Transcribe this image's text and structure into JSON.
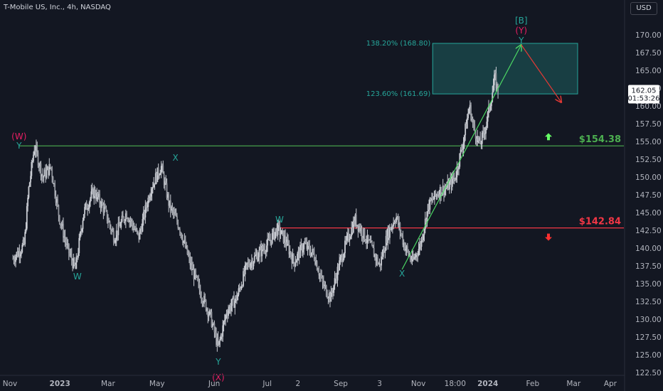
{
  "header": {
    "title": "T-Mobile US, Inc., 4h, NASDAQ",
    "currency": "USD"
  },
  "price_label": {
    "price": "162.05",
    "countdown": "01:53:26"
  },
  "colors": {
    "background": "#131722",
    "candle": "#c9ccd3",
    "green_line": "#4caf50",
    "red_line": "#f23645",
    "teal": "#26a69a",
    "magenta": "#e91e63",
    "arrow_green": "#66ff66",
    "arrow_red": "#ff3030"
  },
  "chart_data": {
    "type": "candlestick",
    "title": "T-Mobile US, Inc., 4h, NASDAQ",
    "ylim": [
      121.5,
      173.5
    ],
    "y_ticks": [
      "170.00",
      "167.50",
      "165.00",
      "162.50",
      "160.00",
      "157.50",
      "155.00",
      "152.50",
      "150.00",
      "147.50",
      "145.00",
      "142.50",
      "140.00",
      "137.50",
      "135.00",
      "132.50",
      "130.00",
      "127.50",
      "125.00",
      "122.50"
    ],
    "x_ticks": [
      "Nov",
      "2023",
      "Mar",
      "May",
      "Jun",
      "Jul",
      "2",
      "Sep",
      "3",
      "Nov",
      "18:00",
      "2024",
      "Feb",
      "Mar",
      "Apr"
    ],
    "close_path": [
      {
        "x": 0.02,
        "y": 138.5
      },
      {
        "x": 0.3,
        "y": 140.5
      },
      {
        "x": 0.4,
        "y": 148.0
      },
      {
        "x": 0.55,
        "y": 154.4
      },
      {
        "x": 0.75,
        "y": 150.0
      },
      {
        "x": 0.95,
        "y": 151.5
      },
      {
        "x": 1.15,
        "y": 144.5
      },
      {
        "x": 1.35,
        "y": 140.0
      },
      {
        "x": 1.55,
        "y": 137.0
      },
      {
        "x": 1.75,
        "y": 145.0
      },
      {
        "x": 2.0,
        "y": 148.0
      },
      {
        "x": 2.25,
        "y": 145.5
      },
      {
        "x": 2.5,
        "y": 141.5
      },
      {
        "x": 2.8,
        "y": 145.0
      },
      {
        "x": 3.1,
        "y": 141.5
      },
      {
        "x": 3.4,
        "y": 148.5
      },
      {
        "x": 3.65,
        "y": 151.5
      },
      {
        "x": 3.85,
        "y": 146.0
      },
      {
        "x": 4.1,
        "y": 143.0
      },
      {
        "x": 4.35,
        "y": 138.0
      },
      {
        "x": 4.6,
        "y": 134.0
      },
      {
        "x": 4.85,
        "y": 130.5
      },
      {
        "x": 5.05,
        "y": 126.0
      },
      {
        "x": 5.25,
        "y": 131.0
      },
      {
        "x": 5.5,
        "y": 133.0
      },
      {
        "x": 5.75,
        "y": 137.5
      },
      {
        "x": 6.0,
        "y": 139.0
      },
      {
        "x": 6.25,
        "y": 140.5
      },
      {
        "x": 6.5,
        "y": 142.8
      },
      {
        "x": 6.7,
        "y": 141.0
      },
      {
        "x": 6.9,
        "y": 138.0
      },
      {
        "x": 7.15,
        "y": 140.5
      },
      {
        "x": 7.4,
        "y": 139.0
      },
      {
        "x": 7.6,
        "y": 135.0
      },
      {
        "x": 7.8,
        "y": 133.0
      },
      {
        "x": 8.0,
        "y": 137.5
      },
      {
        "x": 8.2,
        "y": 141.0
      },
      {
        "x": 8.4,
        "y": 144.0
      },
      {
        "x": 8.6,
        "y": 142.0
      },
      {
        "x": 8.8,
        "y": 140.0
      },
      {
        "x": 9.0,
        "y": 137.5
      },
      {
        "x": 9.2,
        "y": 142.0
      },
      {
        "x": 9.4,
        "y": 144.5
      },
      {
        "x": 9.6,
        "y": 140.5
      },
      {
        "x": 9.8,
        "y": 138.0
      },
      {
        "x": 10.0,
        "y": 140.5
      },
      {
        "x": 10.2,
        "y": 146.0
      },
      {
        "x": 10.45,
        "y": 148.0
      },
      {
        "x": 10.65,
        "y": 148.5
      },
      {
        "x": 10.85,
        "y": 150.0
      },
      {
        "x": 11.05,
        "y": 155.0
      },
      {
        "x": 11.2,
        "y": 160.0
      },
      {
        "x": 11.3,
        "y": 157.0
      },
      {
        "x": 11.45,
        "y": 154.5
      },
      {
        "x": 11.55,
        "y": 156.0
      },
      {
        "x": 11.7,
        "y": 160.0
      },
      {
        "x": 11.82,
        "y": 164.0
      },
      {
        "x": 11.9,
        "y": 162.05
      }
    ],
    "annotations": {
      "wave_labels": [
        {
          "text": "(W)",
          "x": 0.17,
          "y": 155.7,
          "color": "#e91e63"
        },
        {
          "text": "Y",
          "x": 0.17,
          "y": 154.4,
          "color": "#26a69a"
        },
        {
          "text": "W",
          "x": 1.6,
          "y": 136.0,
          "color": "#26a69a"
        },
        {
          "text": "X",
          "x": 4.0,
          "y": 152.7,
          "color": "#26a69a"
        },
        {
          "text": "Y",
          "x": 5.05,
          "y": 124.0,
          "color": "#26a69a"
        },
        {
          "text": "(X)",
          "x": 5.05,
          "y": 121.8,
          "color": "#e91e63"
        },
        {
          "text": "W",
          "x": 6.55,
          "y": 144.0,
          "color": "#26a69a"
        },
        {
          "text": "X",
          "x": 9.55,
          "y": 136.4,
          "color": "#26a69a"
        },
        {
          "text": "[B]",
          "x": 12.47,
          "y": 172.0,
          "color": "#26a69a"
        },
        {
          "text": "(Y)",
          "x": 12.47,
          "y": 170.6,
          "color": "#e91e63"
        },
        {
          "text": "Y",
          "x": 12.47,
          "y": 169.2,
          "color": "#26a69a"
        }
      ],
      "fib_zone": {
        "levels": [
          "138.20% (168.80)",
          "123.60% (161.69)"
        ],
        "top": 168.8,
        "bottom": 161.69,
        "x_start": 10.3,
        "x_end": 13.85
      },
      "levels": [
        {
          "price": 154.38,
          "label": "$154.38",
          "color": "#4caf50",
          "x_start": 0.17,
          "direction": "up"
        },
        {
          "price": 142.84,
          "label": "$142.84",
          "color": "#f23645",
          "x_start": 6.55,
          "direction": "down"
        }
      ],
      "green_trend": {
        "from": {
          "x": 9.55,
          "y": 137.0
        },
        "to": {
          "x": 12.47,
          "y": 168.6
        }
      },
      "red_projection": {
        "from": {
          "x": 12.47,
          "y": 168.6
        },
        "to": {
          "x": 13.45,
          "y": 160.5
        }
      }
    }
  }
}
